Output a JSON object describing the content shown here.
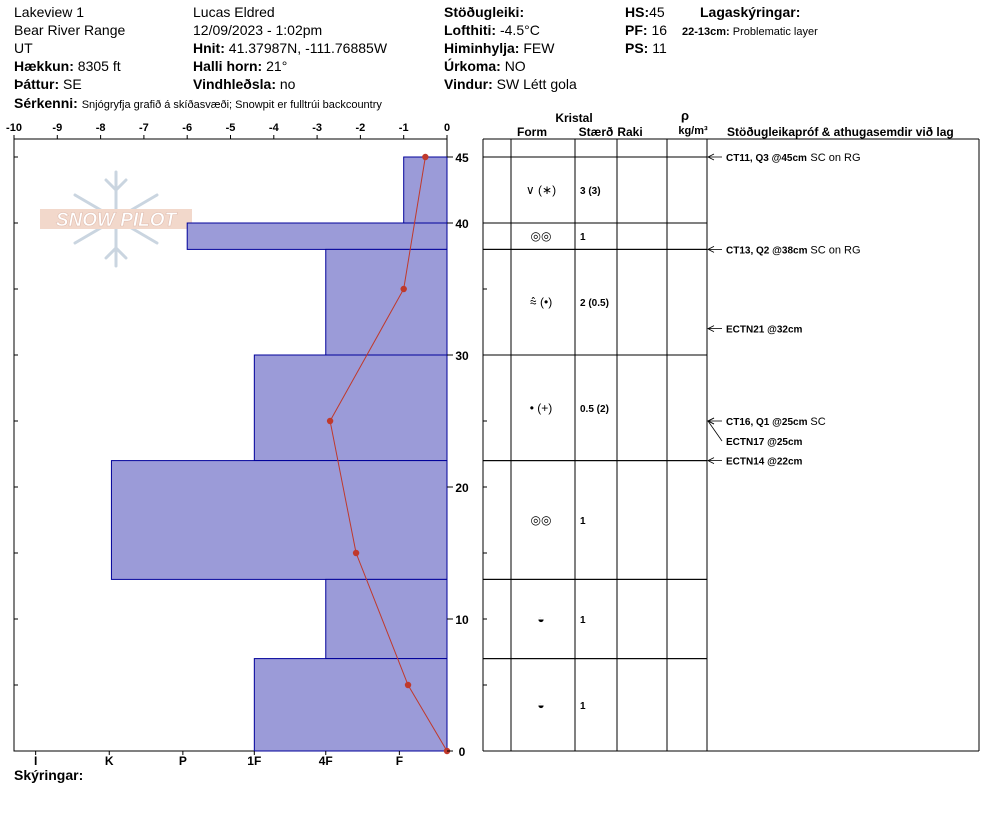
{
  "header": {
    "location": "Lakeview 1",
    "range": "Bear River Range",
    "state": "UT",
    "elevation_label": "Hækkun:",
    "elevation": "8305 ft",
    "aspect_label": "Þáttur:",
    "aspect": "SE",
    "observer": "Lucas Eldred",
    "datetime": "12/09/2023 - 1:02pm",
    "coords_label": "Hnit:",
    "coords": "41.37987N, -111.76885W",
    "slope_label": "Halli horn:",
    "slope": "21°",
    "wind_loading_label": "Vindhleðsla:",
    "wind_loading": "no",
    "stability_label": "Stöðugleiki:",
    "air_temp_label": "Lofthiti:",
    "air_temp": "-4.5°C",
    "sky_label": "Himinhylja:",
    "sky": "FEW",
    "precip_label": "Úrkoma:",
    "precip": "NO",
    "wind_label": "Vindur:",
    "wind": "SW Létt gola",
    "hs_label": "HS:",
    "hs": "45",
    "pf_label": "PF:",
    "pf": "16",
    "ps_label": "PS:",
    "ps": "11",
    "layer_notes_label": "Lagaskýringar:",
    "layer_note_range": "22-13cm:",
    "layer_note_text": "Problematic layer",
    "features_label": "Sérkenni:",
    "features": "Snjógryfja grafið á skíðasvæði; Snowpit er fulltrúi backcountry"
  },
  "logo_text": "SNOW PILOT",
  "footer_label": "Skýringar:",
  "table_headers": {
    "crystal": "Kristal",
    "form": "Form",
    "size": "Stærð",
    "moisture": "Raki",
    "density_symbol": "ρ",
    "density_unit": "kg/m³",
    "tests": "Stöðugleikapróf & athugasemdir við lag"
  },
  "colors": {
    "hardness_fill": "#9b9bd8",
    "hardness_stroke": "#00009a",
    "ram_line": "#c0392b",
    "ram_point": "#c0392b"
  },
  "chart_data": {
    "type": "area",
    "x_top_ticks": [
      "-10",
      "-9",
      "-8",
      "-7",
      "-6",
      "-5",
      "-4",
      "-3",
      "-2",
      "-1",
      "0"
    ],
    "x_bottom_ticks": [
      "I",
      "K",
      "P",
      "1F",
      "4F",
      "F"
    ],
    "y_ticks": [
      "0",
      "10",
      "20",
      "30",
      "40",
      "45"
    ],
    "ylim": [
      0,
      45
    ],
    "xlim": [
      -10,
      0
    ],
    "grid": false,
    "hardness_layers": [
      {
        "top": 45,
        "bottom": 40,
        "hardness": -1
      },
      {
        "top": 40,
        "bottom": 38,
        "hardness": -6
      },
      {
        "top": 38,
        "bottom": 30,
        "hardness": -2.8
      },
      {
        "top": 30,
        "bottom": 22,
        "hardness": -4.45
      },
      {
        "top": 22,
        "bottom": 13,
        "hardness": -7.75
      },
      {
        "top": 13,
        "bottom": 7,
        "hardness": -2.8
      },
      {
        "top": 7,
        "bottom": 0,
        "hardness": -4.45
      }
    ],
    "ram_profile": [
      {
        "height": 45,
        "value": -0.5
      },
      {
        "height": 35,
        "value": -1
      },
      {
        "height": 25,
        "value": -2.7
      },
      {
        "height": 15,
        "value": -2.1
      },
      {
        "height": 5,
        "value": -0.9
      },
      {
        "height": 0,
        "value": 0
      }
    ]
  },
  "layers": [
    {
      "top": 45,
      "bottom": 40,
      "grain": "∨ (∗)",
      "size": "3 (3)"
    },
    {
      "top": 40,
      "bottom": 38,
      "grain": "◎◎",
      "size": "1"
    },
    {
      "top": 38,
      "bottom": 30,
      "grain": "⩯ (•)",
      "size": "2 (0.5)"
    },
    {
      "top": 30,
      "bottom": 22,
      "grain": "• (+)",
      "size": "0.5 (2)"
    },
    {
      "top": 22,
      "bottom": 13,
      "grain": "◎◎",
      "size": "1"
    },
    {
      "top": 13,
      "bottom": 7,
      "grain": "◒",
      "size": "1"
    },
    {
      "top": 7,
      "bottom": 0,
      "grain": "◒",
      "size": "1"
    }
  ],
  "tests": [
    {
      "height": 45,
      "label": "CT11, Q3 @45cm",
      "note": "SC on RG"
    },
    {
      "height": 38,
      "label": "CT13, Q2 @38cm",
      "note": "SC on RG"
    },
    {
      "height": 32,
      "label": "ECTN21 @32cm",
      "note": ""
    },
    {
      "height": 25,
      "label": "CT16, Q1 @25cm",
      "note": "SC"
    },
    {
      "height": 25,
      "label": "ECTN17 @25cm",
      "note": ""
    },
    {
      "height": 22,
      "label": "ECTN14 @22cm",
      "note": ""
    }
  ]
}
